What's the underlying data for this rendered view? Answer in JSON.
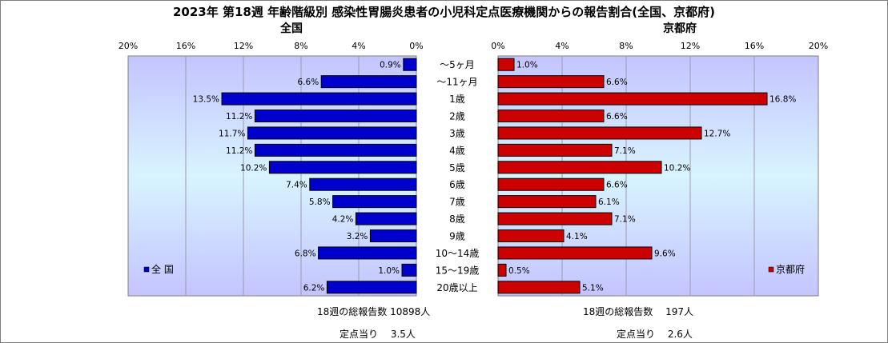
{
  "chart_data": {
    "type": "bar",
    "title": "2023年 第18週 年齢階級別 感染性胃腸炎患者の小児科定点医療機関からの報告割合(全国、京都府)",
    "categories": [
      "～5ヶ月",
      "～11ヶ月",
      "1歳",
      "2歳",
      "3歳",
      "4歳",
      "5歳",
      "6歳",
      "7歳",
      "8歳",
      "9歳",
      "10～14歳",
      "15～19歳",
      "20歳以上"
    ],
    "xlim": [
      0,
      20
    ],
    "ticks": [
      "0%",
      "4%",
      "8%",
      "12%",
      "16%",
      "20%"
    ],
    "grid": true,
    "series": [
      {
        "name": "全 国",
        "panel_title": "全国",
        "color": "#0000cc",
        "values": [
          0.9,
          6.6,
          13.5,
          11.2,
          11.7,
          11.2,
          10.2,
          7.4,
          5.8,
          4.2,
          3.2,
          6.8,
          1.0,
          6.2
        ],
        "labels": [
          "0.9%",
          "6.6%",
          "13.5%",
          "11.2%",
          "11.7%",
          "11.2%",
          "10.2%",
          "7.4%",
          "5.8%",
          "4.2%",
          "3.2%",
          "6.8%",
          "1.0%",
          "6.2%"
        ],
        "legend_position": "bottom-left"
      },
      {
        "name": "京都府",
        "panel_title": "京都府",
        "color": "#cc0000",
        "values": [
          1.0,
          6.6,
          16.8,
          6.6,
          12.7,
          7.1,
          10.2,
          6.6,
          6.1,
          7.1,
          4.1,
          9.6,
          0.5,
          5.1
        ],
        "labels": [
          "1.0%",
          "6.6%",
          "16.8%",
          "6.6%",
          "12.7%",
          "7.1%",
          "10.2%",
          "6.6%",
          "6.1%",
          "7.1%",
          "4.1%",
          "9.6%",
          "0.5%",
          "5.1%"
        ],
        "legend_position": "bottom-right"
      }
    ]
  },
  "footer": {
    "national_total": "18週の総報告数 10898人",
    "national_per_site": "定点当り　 3.5人",
    "kyoto_total": "18週の総報告数　 197人",
    "kyoto_per_site": "定点当り　 2.6人"
  }
}
